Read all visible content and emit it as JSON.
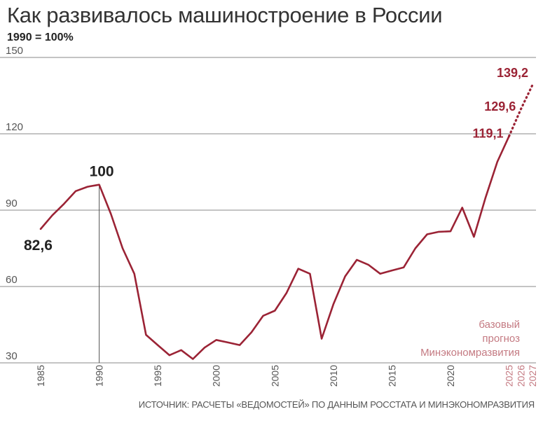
{
  "title": "Как развивалось машиностроение в России",
  "subtitle": "1990 = 100%",
  "source": "ИСТОЧНИК: РАСЧЕТЫ «ВЕДОМОСТЕЙ» ПО ДАННЫМ РОССТАТА И МИНЭКОНОМРАЗВИТИЯ",
  "colors": {
    "line": "#9b2335",
    "grid": "#8a8a8a",
    "forecast_text": "#c47a82"
  },
  "chart_data": {
    "type": "line",
    "ylim": [
      30,
      150
    ],
    "xlim": [
      1985,
      2027
    ],
    "y_ticks": [
      "30",
      "60",
      "90",
      "120",
      "150"
    ],
    "x_ticks": [
      "1985",
      "1990",
      "1995",
      "2000",
      "2005",
      "2010",
      "2015",
      "2020",
      "2025",
      "2026",
      "2027"
    ],
    "grid": "horizontal",
    "reference_year": 1990,
    "series": [
      {
        "style": "solid",
        "x": [
          1985,
          1986,
          1987,
          1988,
          1989,
          1990,
          1991,
          1992,
          1993,
          1994,
          1995,
          1996,
          1997,
          1998,
          1999,
          2000,
          2001,
          2002,
          2003,
          2004,
          2005,
          2006,
          2007,
          2008,
          2009,
          2010,
          2011,
          2012,
          2013,
          2014,
          2015,
          2016,
          2017,
          2018,
          2019,
          2020,
          2021,
          2022,
          2023,
          2024,
          2025
        ],
        "y": [
          82.6,
          88,
          92.5,
          97.5,
          99.2,
          100,
          88.5,
          75,
          65,
          41,
          37,
          33,
          35,
          31.5,
          36,
          39,
          38,
          37,
          42,
          48.5,
          50.5,
          57.5,
          67,
          65,
          39.5,
          53,
          64,
          70.5,
          68.5,
          65,
          66.3,
          67.5,
          75,
          80.5,
          81.5,
          81.7,
          91,
          79.5,
          95,
          109,
          119.1
        ]
      },
      {
        "style": "dotted",
        "x": [
          2025,
          2026,
          2027
        ],
        "y": [
          119.1,
          129.6,
          139.2
        ]
      }
    ],
    "annotations": [
      {
        "text": "82,6",
        "x": 1985,
        "y": 82.6
      },
      {
        "text": "100",
        "x": 1990,
        "y": 100
      },
      {
        "text": "119,1",
        "x": 2025,
        "y": 119.1
      },
      {
        "text": "129,6",
        "x": 2026,
        "y": 129.6
      },
      {
        "text": "139,2",
        "x": 2027,
        "y": 139.2
      }
    ],
    "forecast_note": [
      "базовый",
      "прогноз",
      "Минэкономразвития"
    ]
  }
}
